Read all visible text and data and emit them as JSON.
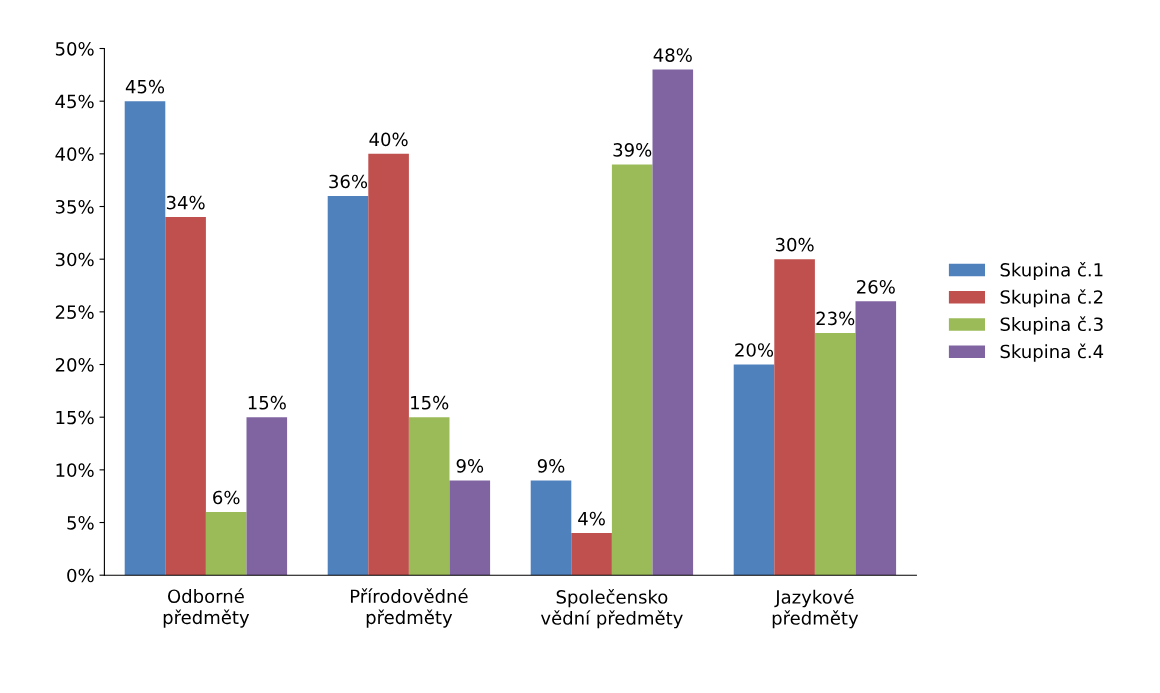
{
  "chart_data": {
    "type": "bar",
    "categories": [
      "Odborné\npředměty",
      "Přírodovědné\npředměty",
      "Společensko\nvědní předměty",
      "Jazykové\npředměty"
    ],
    "series": [
      {
        "name": "Skupina č.1",
        "color": "#4f81bd",
        "values": [
          45,
          36,
          9,
          20
        ],
        "value_labels": [
          "45%",
          "36%",
          "9%",
          "20%"
        ]
      },
      {
        "name": "Skupina č.2",
        "color": "#c0504d",
        "values": [
          34,
          40,
          4,
          30
        ],
        "value_labels": [
          "34%",
          "40%",
          "4%",
          "30%"
        ]
      },
      {
        "name": "Skupina č.3",
        "color": "#9bbb59",
        "values": [
          6,
          15,
          39,
          23
        ],
        "value_labels": [
          "6%",
          "15%",
          "39%",
          "23%"
        ]
      },
      {
        "name": "Skupina č.4",
        "color": "#8064a2",
        "values": [
          15,
          9,
          48,
          26
        ],
        "value_labels": [
          "15%",
          "9%",
          "48%",
          "26%"
        ]
      }
    ],
    "ylim": [
      0,
      50
    ],
    "yticks": [
      {
        "value": 0,
        "label": "0%"
      },
      {
        "value": 5,
        "label": "5%"
      },
      {
        "value": 10,
        "label": "10%"
      },
      {
        "value": 15,
        "label": "15%"
      },
      {
        "value": 20,
        "label": "20%"
      },
      {
        "value": 25,
        "label": "25%"
      },
      {
        "value": 30,
        "label": "30%"
      },
      {
        "value": 35,
        "label": "35%"
      },
      {
        "value": 40,
        "label": "40%"
      },
      {
        "value": 45,
        "label": "45%"
      },
      {
        "value": 50,
        "label": "50%"
      }
    ],
    "grid": false,
    "legend": "right"
  }
}
